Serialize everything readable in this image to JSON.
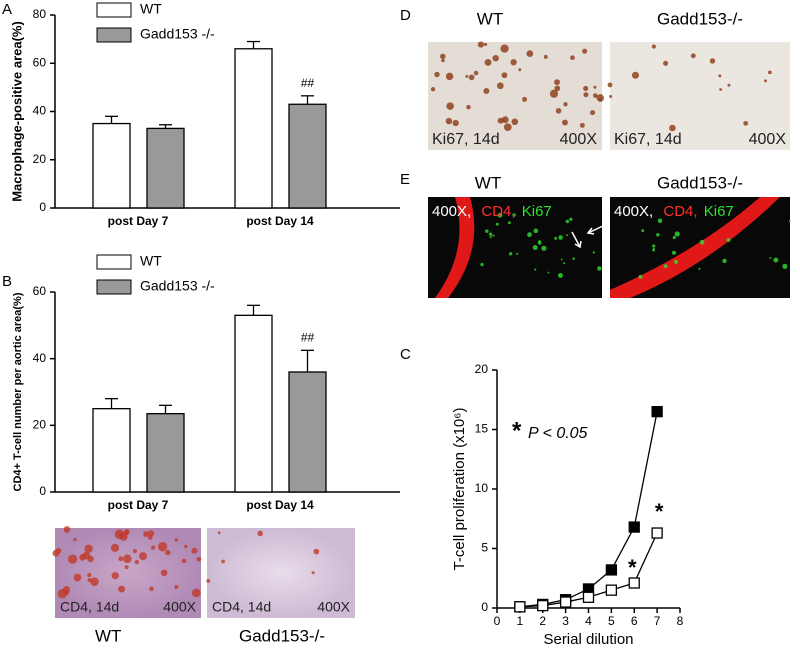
{
  "chart_data": [
    {
      "type": "bar",
      "panel": "A",
      "ylabel": "Macrophage-positive area(%)",
      "categories": [
        "post Day 7",
        "post Day 14"
      ],
      "series": [
        {
          "name": "WT",
          "color": "#ffffff",
          "values": [
            35,
            66
          ],
          "errors": [
            3,
            3
          ]
        },
        {
          "name": "Gadd153 -/-",
          "color": "#999999",
          "values": [
            33,
            43
          ],
          "errors": [
            1.5,
            3.5
          ]
        }
      ],
      "annotations": [
        "##"
      ],
      "ylim": [
        0,
        80
      ],
      "yticks": [
        0,
        20,
        40,
        60,
        80
      ]
    },
    {
      "type": "bar",
      "panel": "B",
      "ylabel": "CD4+ T-cell number per aortic area(%)",
      "categories": [
        "post Day 7",
        "post Day 14"
      ],
      "series": [
        {
          "name": "WT",
          "color": "#ffffff",
          "values": [
            25,
            53
          ],
          "errors": [
            3,
            3
          ]
        },
        {
          "name": "Gadd153 -/-",
          "color": "#999999",
          "values": [
            23.5,
            36
          ],
          "errors": [
            2.5,
            6.5
          ]
        }
      ],
      "annotations": [
        "##"
      ],
      "ylim": [
        0,
        60
      ],
      "yticks": [
        0,
        20,
        40,
        60
      ]
    },
    {
      "type": "line",
      "panel": "C",
      "xlabel": "Serial dilution",
      "ylabel": "T-cell proliferation (x10⁶)",
      "x": [
        1,
        2,
        3,
        4,
        5,
        6,
        7
      ],
      "series": [
        {
          "color": "#000000",
          "marker": "filled",
          "values": [
            0.1,
            0.3,
            0.7,
            1.6,
            3.2,
            6.8,
            16.5
          ]
        },
        {
          "color": "#000000",
          "marker": "open",
          "values": [
            0.1,
            0.2,
            0.5,
            0.9,
            1.5,
            2.1,
            6.3
          ]
        }
      ],
      "annotations": [
        "*",
        "*"
      ],
      "note": {
        "symbol": "*",
        "text": "P < 0.05"
      },
      "xlim": [
        0,
        8
      ],
      "xticks": [
        0,
        1,
        2,
        3,
        4,
        5,
        6,
        7,
        8
      ],
      "ylim": [
        0,
        20
      ],
      "yticks": [
        0,
        5,
        10,
        15,
        20
      ]
    }
  ],
  "images": {
    "B": {
      "captions": [
        "CD4, 14d",
        "CD4, 14d"
      ],
      "magnification": [
        "400X",
        "400X"
      ],
      "labels": [
        "WT",
        "Gadd153-/-"
      ]
    },
    "D": {
      "label": "D",
      "titles": [
        "WT",
        "Gadd153-/-"
      ],
      "captions": [
        "Ki67, 14d",
        "Ki67, 14d"
      ],
      "magnification": [
        "400X",
        "400X"
      ]
    },
    "E": {
      "label": "E",
      "titles": [
        "WT",
        "Gadd153-/-"
      ],
      "magnification": [
        "400X,",
        "400X,"
      ],
      "stain1": [
        "CD4,",
        "CD4,"
      ],
      "stain2": [
        "Ki67",
        "Ki67"
      ]
    }
  }
}
